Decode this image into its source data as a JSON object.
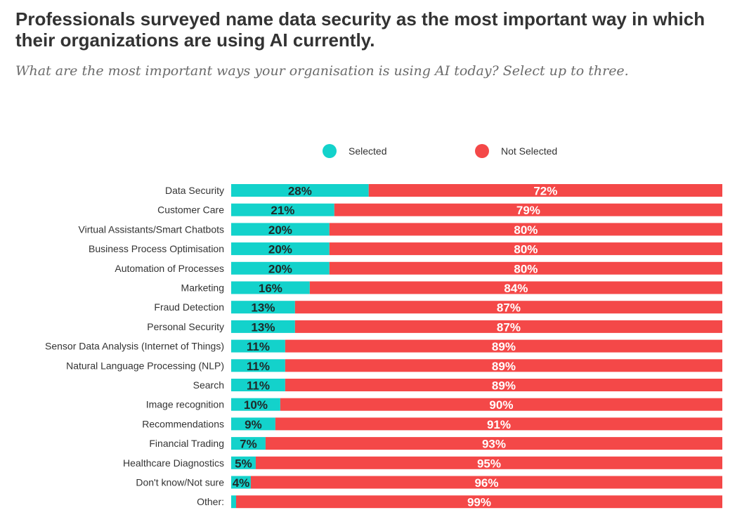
{
  "title": "Professionals surveyed name data security as the most important way in which their organizations are using AI currently.",
  "subtitle": "What are the most important ways your organisation is using AI today? Select up to three.",
  "colors": {
    "selected": "#13d2cb",
    "not_selected": "#f44848",
    "label_selected": "#1f2a2a",
    "label_not_selected": "#ffffff"
  },
  "legend": [
    {
      "label": "Selected",
      "color": "#13d2cb"
    },
    {
      "label": "Not Selected",
      "color": "#f44848"
    }
  ],
  "chart_data": {
    "type": "bar",
    "orientation": "horizontal",
    "stacked": true,
    "percent_scale": [
      0,
      100
    ],
    "grid": false,
    "legend_position": "top",
    "categories": [
      "Data Security",
      "Customer Care",
      "Virtual Assistants/Smart Chatbots",
      "Business Process Optimisation",
      "Automation of Processes",
      "Marketing",
      "Fraud Detection",
      "Personal Security",
      "Sensor Data Analysis (Internet of Things)",
      "Natural Language Processing (NLP)",
      "Search",
      "Image recognition",
      "Recommendations",
      "Financial Trading",
      "Healthcare Diagnostics",
      "Don't know/Not sure",
      "Other:"
    ],
    "series": [
      {
        "name": "Selected",
        "values": [
          28,
          21,
          20,
          20,
          20,
          16,
          13,
          13,
          11,
          11,
          11,
          10,
          9,
          7,
          5,
          4,
          1
        ],
        "labels": [
          "28%",
          "21%",
          "20%",
          "20%",
          "20%",
          "16%",
          "13%",
          "13%",
          "11%",
          "11%",
          "11%",
          "10%",
          "9%",
          "7%",
          "5%",
          "4%",
          ""
        ]
      },
      {
        "name": "Not Selected",
        "values": [
          72,
          79,
          80,
          80,
          80,
          84,
          87,
          87,
          89,
          89,
          89,
          90,
          91,
          93,
          95,
          96,
          99
        ],
        "labels": [
          "72%",
          "79%",
          "80%",
          "80%",
          "80%",
          "84%",
          "87%",
          "87%",
          "89%",
          "89%",
          "89%",
          "90%",
          "91%",
          "93%",
          "95%",
          "96%",
          "99%"
        ]
      }
    ]
  }
}
